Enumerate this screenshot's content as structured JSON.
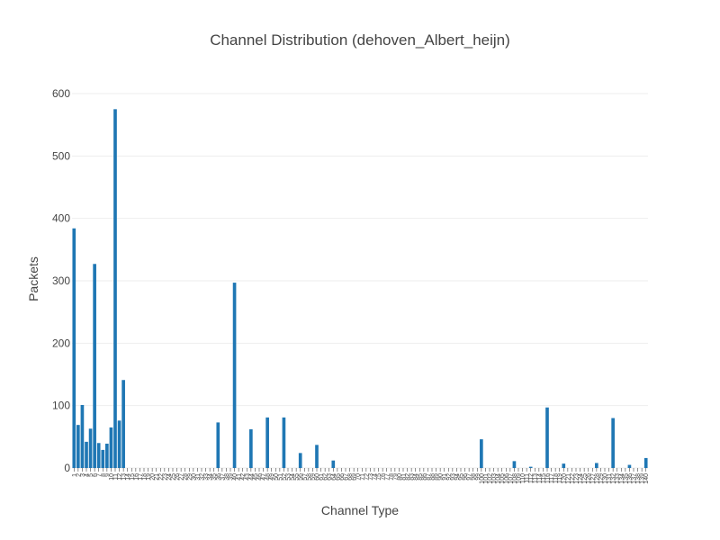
{
  "chart_data": {
    "type": "bar",
    "title": "Channel Distribution (dehoven_Albert_heijn)",
    "xlabel": "Channel Type",
    "ylabel": "Packets",
    "color": "#1f77b4",
    "grid": true,
    "ylim": [
      0,
      600
    ],
    "yticks": [
      0,
      100,
      200,
      300,
      400,
      500,
      600
    ],
    "categories": [
      "1",
      "2",
      "3",
      "4",
      "5",
      "6",
      "7",
      "8",
      "9",
      "10",
      "11",
      "12",
      "13",
      "14",
      "15",
      "16",
      "17",
      "18",
      "19",
      "20",
      "21",
      "22",
      "23",
      "24",
      "25",
      "26",
      "27",
      "28",
      "29",
      "30",
      "31",
      "32",
      "33",
      "34",
      "35",
      "36",
      "37",
      "38",
      "39",
      "40",
      "41",
      "42",
      "43",
      "44",
      "45",
      "46",
      "47",
      "48",
      "49",
      "50",
      "51",
      "52",
      "53",
      "54",
      "55",
      "56",
      "57",
      "58",
      "59",
      "60",
      "61",
      "62",
      "63",
      "64",
      "65",
      "66",
      "67",
      "68",
      "69",
      "70",
      "71",
      "72",
      "73",
      "74",
      "75",
      "76",
      "77",
      "78",
      "79",
      "80",
      "81",
      "82",
      "83",
      "84",
      "85",
      "86",
      "87",
      "88",
      "89",
      "90",
      "91",
      "92",
      "93",
      "94",
      "95",
      "96",
      "97",
      "98",
      "99",
      "100",
      "101",
      "102",
      "103",
      "104",
      "105",
      "106",
      "107",
      "108",
      "109",
      "110",
      "111",
      "112",
      "113",
      "114",
      "115",
      "116",
      "117",
      "118",
      "119",
      "120",
      "121",
      "122",
      "123",
      "124",
      "125",
      "126",
      "127",
      "128",
      "129",
      "130",
      "131",
      "132",
      "133",
      "134",
      "135",
      "136",
      "137",
      "138",
      "139",
      "140"
    ],
    "values": [
      384,
      69,
      101,
      42,
      63,
      327,
      40,
      29,
      39,
      65,
      575,
      76,
      141,
      0,
      0,
      0,
      0,
      0,
      0,
      0,
      0,
      0,
      0,
      0,
      0,
      0,
      0,
      0,
      0,
      0,
      0,
      0,
      0,
      0,
      0,
      73,
      0,
      0,
      0,
      297,
      0,
      0,
      0,
      62,
      0,
      0,
      0,
      81,
      0,
      0,
      0,
      81,
      0,
      0,
      0,
      24,
      0,
      0,
      0,
      37,
      0,
      0,
      0,
      12,
      0,
      0,
      0,
      0,
      0,
      0,
      0,
      0,
      0,
      0,
      0,
      0,
      0,
      0,
      0,
      0,
      0,
      0,
      0,
      0,
      0,
      0,
      0,
      0,
      0,
      0,
      0,
      0,
      0,
      0,
      0,
      0,
      0,
      0,
      0,
      46,
      0,
      0,
      0,
      0,
      0,
      0,
      0,
      11,
      0,
      0,
      0,
      2,
      0,
      0,
      0,
      97,
      0,
      0,
      0,
      7,
      0,
      0,
      0,
      0,
      0,
      0,
      0,
      8,
      0,
      0,
      0,
      80,
      0,
      0,
      0,
      5,
      0,
      0,
      0,
      16
    ]
  }
}
